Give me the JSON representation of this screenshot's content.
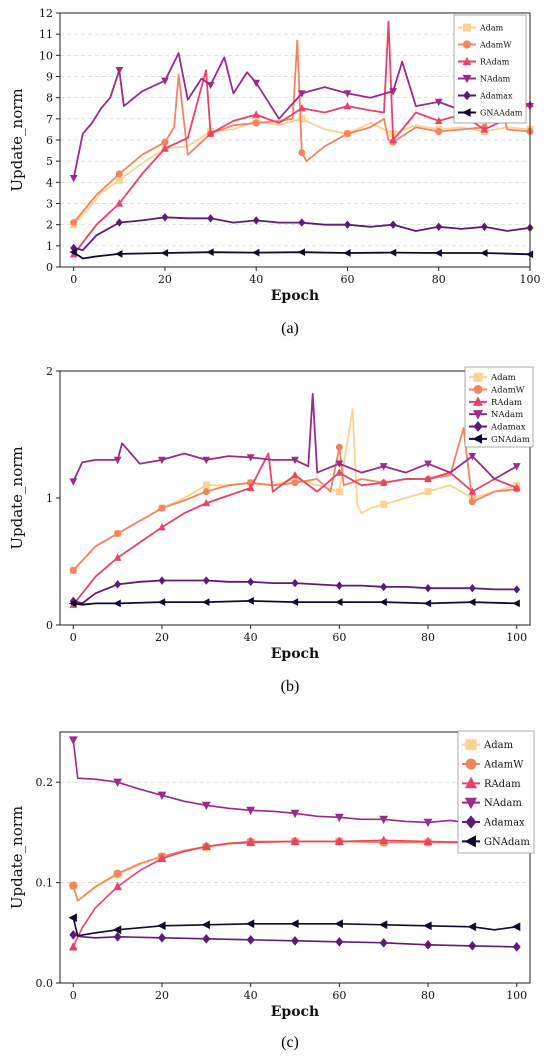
{
  "chart_data": [
    {
      "type": "line",
      "panel_label": "(a)",
      "xlabel": "Epoch",
      "ylabel": "Update_norm",
      "xlim": [
        -3,
        100
      ],
      "ylim": [
        0,
        12
      ],
      "xticks": [
        0,
        20,
        40,
        60,
        80,
        100
      ],
      "yticks": [
        0,
        1,
        2,
        3,
        4,
        5,
        6,
        7,
        8,
        9,
        10,
        11,
        12
      ],
      "ytick_labels": [
        "0",
        "1",
        "2",
        "3",
        "4",
        "5",
        "6",
        "7",
        "8",
        "9",
        "10",
        "11",
        "12"
      ],
      "grid": "y-dashed",
      "legend_position": "top-right",
      "series": [
        {
          "name": "Adam",
          "color": "#fbd38f",
          "marker": "square",
          "x": [
            0,
            3,
            6,
            10,
            15,
            20,
            25,
            30,
            35,
            40,
            45,
            50,
            55,
            60,
            65,
            70,
            75,
            80,
            85,
            90,
            95,
            100
          ],
          "y": [
            2.0,
            2.7,
            3.5,
            4.1,
            4.9,
            5.6,
            5.7,
            6.4,
            6.5,
            6.9,
            6.7,
            7.0,
            6.5,
            6.3,
            6.8,
            6.3,
            6.7,
            6.5,
            6.6,
            6.4,
            6.6,
            6.5
          ]
        },
        {
          "name": "AdamW",
          "color": "#f4845f",
          "marker": "circle",
          "x": [
            0,
            5,
            10,
            15,
            20,
            22,
            23,
            25,
            30,
            35,
            40,
            45,
            48,
            49,
            50,
            51,
            55,
            60,
            65,
            68,
            69,
            70,
            75,
            80,
            85,
            90,
            93,
            95,
            100
          ],
          "y": [
            2.1,
            3.4,
            4.4,
            5.3,
            5.9,
            6.6,
            9.1,
            5.3,
            6.3,
            6.7,
            6.8,
            6.9,
            7.0,
            10.7,
            5.4,
            5.0,
            5.7,
            6.3,
            6.6,
            7.0,
            6.0,
            5.9,
            6.6,
            6.4,
            6.5,
            6.6,
            8.1,
            6.5,
            6.4
          ]
        },
        {
          "name": "RAdam",
          "color": "#e8436a",
          "marker": "triangle-up",
          "x": [
            0,
            5,
            10,
            15,
            20,
            25,
            29,
            30,
            35,
            40,
            45,
            50,
            55,
            60,
            65,
            68,
            69,
            70,
            72,
            75,
            80,
            85,
            90,
            95,
            100
          ],
          "y": [
            0.6,
            2.0,
            3.0,
            4.4,
            5.6,
            6.1,
            9.3,
            6.3,
            6.9,
            7.2,
            6.8,
            7.5,
            7.3,
            7.6,
            7.4,
            7.3,
            11.6,
            6.0,
            6.5,
            7.3,
            6.9,
            7.2,
            6.5,
            7.0,
            7.7
          ]
        },
        {
          "name": "NAdam",
          "color": "#9b2a8a",
          "marker": "triangle-down",
          "x": [
            0,
            2,
            4,
            6,
            8,
            10,
            11,
            15,
            20,
            23,
            25,
            28,
            30,
            33,
            35,
            38,
            40,
            45,
            50,
            55,
            60,
            65,
            70,
            72,
            75,
            80,
            85,
            90,
            95,
            100
          ],
          "y": [
            4.2,
            6.3,
            6.8,
            7.5,
            8.0,
            9.3,
            7.6,
            8.3,
            8.8,
            10.1,
            7.9,
            8.9,
            8.6,
            9.9,
            8.2,
            9.2,
            8.7,
            7.0,
            8.2,
            8.5,
            8.2,
            8.0,
            8.3,
            9.7,
            7.6,
            7.8,
            7.4,
            7.9,
            8.0,
            7.6
          ]
        },
        {
          "name": "Adamax",
          "color": "#5d1b78",
          "marker": "diamond",
          "x": [
            0,
            2,
            5,
            10,
            15,
            20,
            25,
            30,
            35,
            40,
            45,
            50,
            55,
            60,
            65,
            70,
            75,
            80,
            85,
            90,
            95,
            100
          ],
          "y": [
            0.9,
            0.8,
            1.5,
            2.1,
            2.2,
            2.35,
            2.3,
            2.3,
            2.1,
            2.2,
            2.1,
            2.1,
            2.0,
            2.0,
            1.9,
            2.0,
            1.7,
            1.9,
            1.8,
            1.9,
            1.7,
            1.85
          ]
        },
        {
          "name": "GNAAdam",
          "color": "#0f0a2e",
          "marker": "triangle-left",
          "x": [
            0,
            2,
            5,
            10,
            20,
            30,
            40,
            50,
            60,
            70,
            80,
            90,
            100
          ],
          "y": [
            0.7,
            0.4,
            0.5,
            0.62,
            0.66,
            0.7,
            0.68,
            0.7,
            0.66,
            0.68,
            0.66,
            0.66,
            0.6
          ]
        }
      ]
    },
    {
      "type": "line",
      "panel_label": "(b)",
      "xlabel": "Epoch",
      "ylabel": "Update_norm",
      "xlim": [
        -3,
        103
      ],
      "ylim": [
        0,
        2
      ],
      "xticks": [
        0,
        20,
        40,
        60,
        80,
        100
      ],
      "yticks": [
        0,
        1,
        2
      ],
      "ytick_labels": [
        "0",
        "1",
        "2"
      ],
      "grid": "none",
      "legend_position": "top-right",
      "series": [
        {
          "name": "Adam",
          "color": "#fbd38f",
          "marker": "square",
          "x": [
            0,
            5,
            10,
            15,
            20,
            25,
            30,
            35,
            40,
            45,
            50,
            55,
            60,
            63,
            64,
            65,
            67,
            70,
            75,
            80,
            85,
            90,
            95,
            100
          ],
          "y": [
            0.43,
            0.62,
            0.72,
            0.82,
            0.92,
            1.0,
            1.1,
            1.1,
            1.12,
            1.1,
            1.15,
            1.1,
            1.05,
            1.7,
            0.95,
            0.88,
            0.92,
            0.95,
            1.0,
            1.05,
            1.1,
            1.0,
            1.05,
            1.1
          ]
        },
        {
          "name": "AdamW",
          "color": "#f4845f",
          "marker": "circle",
          "x": [
            0,
            5,
            10,
            15,
            20,
            25,
            30,
            35,
            40,
            45,
            50,
            55,
            58,
            60,
            61,
            65,
            70,
            75,
            80,
            85,
            88,
            90,
            95,
            100
          ],
          "y": [
            0.43,
            0.62,
            0.72,
            0.82,
            0.92,
            0.98,
            1.05,
            1.1,
            1.12,
            1.1,
            1.12,
            1.15,
            1.05,
            1.4,
            1.1,
            1.15,
            1.12,
            1.15,
            1.15,
            1.18,
            1.55,
            0.97,
            1.05,
            1.07
          ]
        },
        {
          "name": "RAdam",
          "color": "#e8436a",
          "marker": "triangle-up",
          "x": [
            0,
            5,
            10,
            15,
            20,
            25,
            30,
            35,
            40,
            44,
            45,
            50,
            55,
            60,
            65,
            70,
            75,
            80,
            85,
            90,
            95,
            100
          ],
          "y": [
            0.16,
            0.38,
            0.53,
            0.65,
            0.77,
            0.88,
            0.96,
            1.02,
            1.08,
            1.35,
            1.05,
            1.18,
            1.05,
            1.2,
            1.1,
            1.12,
            1.15,
            1.15,
            1.2,
            1.05,
            1.15,
            1.08
          ]
        },
        {
          "name": "NAdam",
          "color": "#9b2a8a",
          "marker": "triangle-down",
          "x": [
            0,
            2,
            5,
            10,
            11,
            15,
            20,
            25,
            30,
            35,
            40,
            45,
            50,
            53,
            54,
            55,
            60,
            65,
            70,
            75,
            80,
            85,
            90,
            95,
            100
          ],
          "y": [
            1.13,
            1.28,
            1.3,
            1.3,
            1.43,
            1.27,
            1.3,
            1.35,
            1.3,
            1.33,
            1.32,
            1.3,
            1.3,
            1.25,
            1.82,
            1.2,
            1.27,
            1.2,
            1.25,
            1.2,
            1.27,
            1.2,
            1.33,
            1.15,
            1.25
          ]
        },
        {
          "name": "Adamax",
          "color": "#5d1b78",
          "marker": "diamond",
          "x": [
            0,
            2,
            5,
            10,
            15,
            20,
            25,
            30,
            35,
            40,
            45,
            50,
            55,
            60,
            65,
            70,
            75,
            80,
            85,
            90,
            95,
            100
          ],
          "y": [
            0.19,
            0.17,
            0.25,
            0.32,
            0.34,
            0.35,
            0.35,
            0.35,
            0.34,
            0.34,
            0.33,
            0.33,
            0.32,
            0.31,
            0.31,
            0.3,
            0.3,
            0.29,
            0.29,
            0.29,
            0.28,
            0.28
          ]
        },
        {
          "name": "GNAdam",
          "color": "#0f0a2e",
          "marker": "triangle-left",
          "x": [
            0,
            2,
            5,
            10,
            20,
            30,
            40,
            50,
            60,
            70,
            80,
            90,
            100
          ],
          "y": [
            0.17,
            0.16,
            0.17,
            0.17,
            0.18,
            0.18,
            0.19,
            0.18,
            0.18,
            0.18,
            0.17,
            0.18,
            0.17
          ]
        }
      ]
    },
    {
      "type": "line",
      "panel_label": "(c)",
      "xlabel": "Epoch",
      "ylabel": "Update_norm",
      "xlim": [
        -3,
        103
      ],
      "ylim": [
        0,
        0.25
      ],
      "xticks": [
        0,
        20,
        40,
        60,
        80,
        100
      ],
      "yticks": [
        0,
        0.1,
        0.2
      ],
      "ytick_labels": [
        "0.0",
        "0.1",
        "0.2"
      ],
      "grid": "y-dashed",
      "legend_position": "top-right",
      "series": [
        {
          "name": "Adam",
          "color": "#fbd38f",
          "marker": "square",
          "x": [
            0,
            1,
            5,
            10,
            15,
            20,
            25,
            30,
            35,
            40,
            50,
            60,
            70,
            80,
            90,
            100
          ],
          "y": [
            0.097,
            0.082,
            0.095,
            0.108,
            0.118,
            0.126,
            0.131,
            0.135,
            0.138,
            0.14,
            0.141,
            0.141,
            0.14,
            0.14,
            0.14,
            0.141
          ]
        },
        {
          "name": "AdamW",
          "color": "#f4845f",
          "marker": "circle",
          "x": [
            0,
            1,
            5,
            10,
            15,
            20,
            25,
            30,
            35,
            40,
            50,
            60,
            70,
            80,
            90,
            100
          ],
          "y": [
            0.097,
            0.082,
            0.096,
            0.109,
            0.119,
            0.126,
            0.132,
            0.136,
            0.139,
            0.141,
            0.141,
            0.141,
            0.14,
            0.14,
            0.14,
            0.14
          ]
        },
        {
          "name": "RAdam",
          "color": "#e8436a",
          "marker": "triangle-up",
          "x": [
            0,
            2,
            5,
            10,
            15,
            20,
            25,
            30,
            35,
            40,
            50,
            60,
            70,
            80,
            90,
            100
          ],
          "y": [
            0.036,
            0.055,
            0.075,
            0.096,
            0.112,
            0.124,
            0.131,
            0.136,
            0.139,
            0.14,
            0.141,
            0.141,
            0.142,
            0.141,
            0.14,
            0.139
          ]
        },
        {
          "name": "NAdam",
          "color": "#9b2a8a",
          "marker": "triangle-down",
          "x": [
            0,
            1,
            5,
            10,
            15,
            20,
            25,
            30,
            35,
            40,
            45,
            50,
            55,
            60,
            65,
            70,
            75,
            80,
            85,
            90,
            95,
            100
          ],
          "y": [
            0.242,
            0.204,
            0.203,
            0.2,
            0.193,
            0.187,
            0.181,
            0.177,
            0.174,
            0.172,
            0.171,
            0.169,
            0.166,
            0.165,
            0.163,
            0.163,
            0.161,
            0.16,
            0.162,
            0.159,
            0.16,
            0.156
          ]
        },
        {
          "name": "Adamax",
          "color": "#5d1b78",
          "marker": "diamond",
          "x": [
            0,
            2,
            5,
            10,
            20,
            30,
            40,
            50,
            60,
            70,
            80,
            90,
            100
          ],
          "y": [
            0.048,
            0.046,
            0.045,
            0.046,
            0.045,
            0.044,
            0.043,
            0.042,
            0.041,
            0.04,
            0.038,
            0.037,
            0.036
          ]
        },
        {
          "name": "GNAdam",
          "color": "#0f0a2e",
          "marker": "triangle-left",
          "x": [
            0,
            1,
            5,
            10,
            20,
            30,
            40,
            50,
            60,
            70,
            80,
            90,
            95,
            100
          ],
          "y": [
            0.065,
            0.047,
            0.05,
            0.053,
            0.057,
            0.058,
            0.059,
            0.059,
            0.059,
            0.058,
            0.057,
            0.056,
            0.053,
            0.056
          ]
        }
      ]
    }
  ]
}
